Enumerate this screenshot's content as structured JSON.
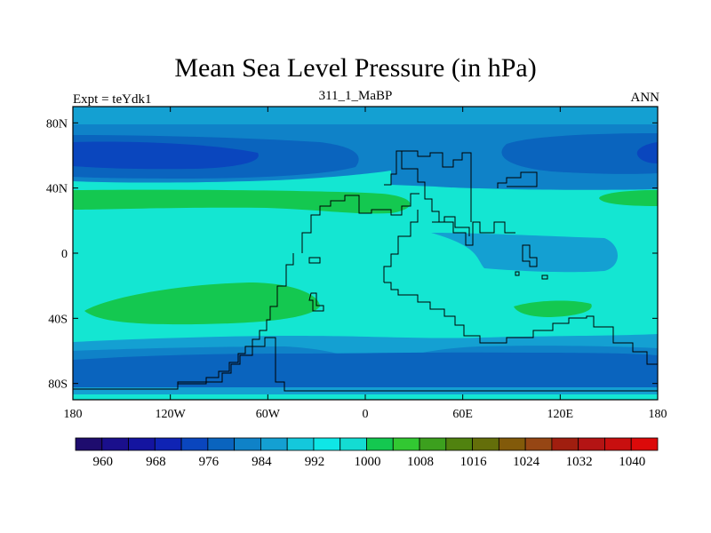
{
  "title": "Mean Sea Level Pressure (in hPa)",
  "subtitle_left": "Expt = teYdk1",
  "subtitle_center": "311_1_MaBP",
  "subtitle_right": "ANN",
  "x_ticks": [
    "180",
    "120W",
    "60W",
    "0",
    "60E",
    "120E",
    "180"
  ],
  "y_ticks": [
    "80N",
    "40N",
    "0",
    "40S",
    "80S"
  ],
  "colorbar": {
    "colors": [
      "#1e0c6e",
      "#1a0f8c",
      "#1414a0",
      "#0f23b4",
      "#0a46be",
      "#0a64be",
      "#0f82c8",
      "#14a0d2",
      "#14c8dc",
      "#0fe6e6",
      "#14dcd2",
      "#14c850",
      "#32c832",
      "#3ca01e",
      "#50820f",
      "#646e0a",
      "#825a0a",
      "#964614",
      "#a01e0f",
      "#b41414",
      "#c80f0f",
      "#dc0a0a"
    ],
    "labels": [
      "960",
      "968",
      "976",
      "984",
      "992",
      "1000",
      "1008",
      "1016",
      "1024",
      "1032",
      "1040"
    ]
  },
  "field_colors": {
    "c960": "#0a46be",
    "c976": "#0a64be",
    "c984": "#0f82c8",
    "c992": "#14a0d2",
    "c1000": "#14e6d2",
    "c1008": "#14c850"
  },
  "lines": "#000000"
}
